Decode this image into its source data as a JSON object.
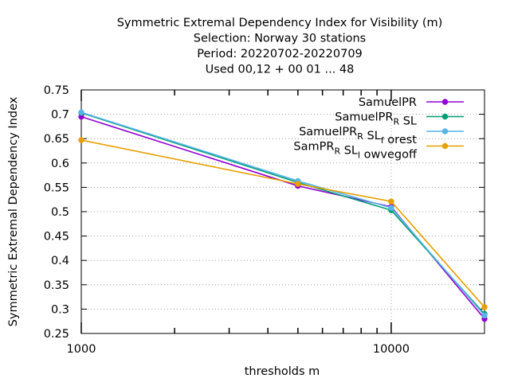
{
  "chart_data": {
    "type": "line",
    "title_lines": [
      "Symmetric Extremal Dependency Index  for Visibility (m)",
      "Selection: Norway     30 stations",
      "Period: 20220702-20220709",
      "Used  00,12  + 00 01 ... 48"
    ],
    "xlabel": "thresholds m",
    "ylabel": "Symmetric Extremal Dependency Index",
    "x_scale": "log",
    "xlim": [
      1000,
      20000
    ],
    "ylim": [
      0.25,
      0.75
    ],
    "x_ticks": [
      {
        "value": 1000,
        "label": "1000"
      },
      {
        "value": 10000,
        "label": "10000"
      }
    ],
    "y_ticks": [
      {
        "value": 0.25,
        "label": "0.25"
      },
      {
        "value": 0.3,
        "label": "0.3"
      },
      {
        "value": 0.35,
        "label": "0.35"
      },
      {
        "value": 0.4,
        "label": "0.4"
      },
      {
        "value": 0.45,
        "label": "0.45"
      },
      {
        "value": 0.5,
        "label": "0.5"
      },
      {
        "value": 0.55,
        "label": "0.55"
      },
      {
        "value": 0.6,
        "label": "0.6"
      },
      {
        "value": 0.65,
        "label": "0.65"
      },
      {
        "value": 0.7,
        "label": "0.7"
      },
      {
        "value": 0.75,
        "label": "0.75"
      }
    ],
    "grid": true,
    "legend_position": "top-right",
    "x": [
      1000,
      5000,
      10000,
      20000
    ],
    "series": [
      {
        "legend": "SamuelPR",
        "color": "#9400d3",
        "values": [
          0.695,
          0.553,
          0.51,
          0.28
        ]
      },
      {
        "legend": "SamuelPR_R SL",
        "color": "#009e73",
        "values": [
          0.703,
          0.56,
          0.503,
          0.29
        ]
      },
      {
        "legend": "SamuelPR_R SL_f orest",
        "color": "#56b4e9",
        "values": [
          0.704,
          0.563,
          0.508,
          0.287
        ]
      },
      {
        "legend": "SamPR_R SL_l owvegoff",
        "color": "#e69f00",
        "values": [
          0.647,
          0.557,
          0.521,
          0.304
        ]
      }
    ]
  }
}
